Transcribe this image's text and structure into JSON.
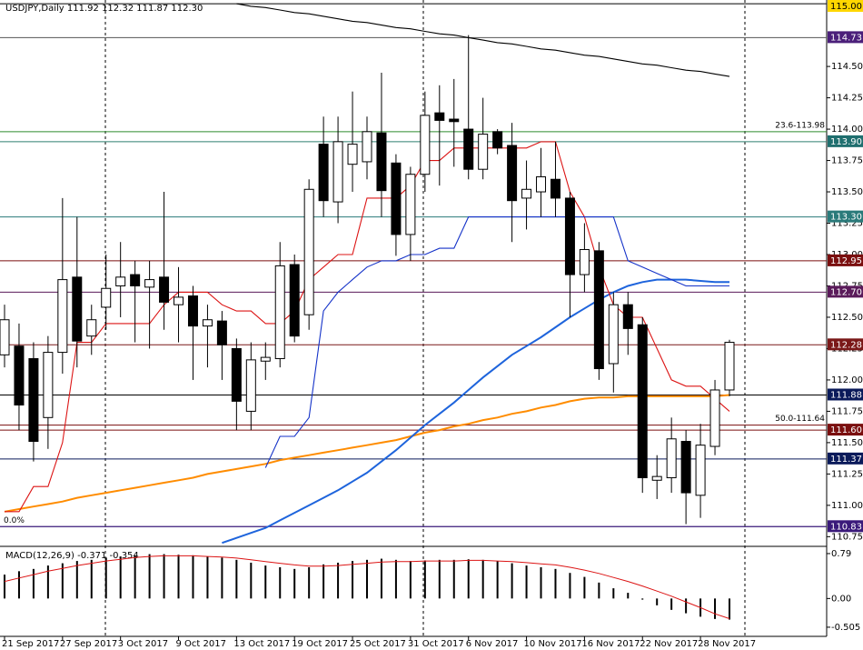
{
  "chart_data": [
    {
      "type": "candlestick",
      "title": "USDJPY,Daily  111.92 112.32 111.87 112.30",
      "categories": [
        "21 Sep 2017",
        null,
        null,
        null,
        "27 Sep 2017",
        null,
        null,
        null,
        "3 Oct 2017",
        null,
        null,
        null,
        "9 Oct 2017",
        null,
        null,
        null,
        "13 Oct 2017",
        null,
        null,
        null,
        "19 Oct 2017",
        null,
        null,
        null,
        "25 Oct 2017",
        null,
        null,
        null,
        "31 Oct 2017",
        null,
        null,
        null,
        "6 Nov 2017",
        null,
        null,
        null,
        "10 Nov 2017",
        null,
        null,
        null,
        "16 Nov 2017",
        null,
        null,
        null,
        "22 Nov 2017",
        null,
        null,
        null,
        "28 Nov 2017",
        null,
        null
      ],
      "open": [
        112.2,
        112.27,
        112.17,
        111.7,
        112.22,
        112.82,
        112.35,
        112.58,
        112.75,
        112.84,
        112.74,
        112.82,
        112.6,
        112.67,
        112.43,
        112.47,
        112.25,
        111.75,
        112.15,
        112.17,
        112.92,
        112.52,
        113.88,
        113.42,
        113.72,
        113.74,
        113.97,
        113.73,
        113.16,
        113.64,
        114.13,
        114.08,
        114.0,
        113.68,
        113.98,
        113.87,
        113.45,
        113.5,
        113.6,
        113.45,
        112.84,
        113.03,
        112.13,
        112.6,
        112.44,
        111.2,
        111.22,
        111.51,
        111.08,
        111.47,
        111.92
      ],
      "high": [
        112.6,
        112.45,
        112.3,
        112.35,
        113.45,
        113.3,
        112.6,
        113.0,
        113.1,
        112.95,
        112.95,
        113.5,
        112.9,
        112.75,
        112.6,
        112.55,
        112.33,
        112.3,
        112.3,
        113.1,
        113.0,
        113.6,
        114.1,
        114.1,
        114.3,
        114.1,
        114.45,
        113.8,
        113.7,
        114.3,
        114.35,
        114.4,
        114.75,
        114.25,
        114.0,
        114.05,
        113.75,
        113.85,
        113.9,
        113.5,
        113.25,
        113.1,
        112.7,
        112.7,
        112.5,
        111.4,
        111.7,
        111.6,
        111.65,
        112.0,
        112.32
      ],
      "low": [
        112.1,
        111.6,
        111.35,
        111.45,
        112.05,
        112.1,
        112.2,
        112.4,
        112.5,
        112.3,
        112.25,
        112.4,
        112.3,
        112.0,
        112.1,
        112.0,
        111.6,
        111.6,
        112.0,
        112.1,
        112.3,
        112.4,
        113.3,
        113.25,
        113.5,
        113.6,
        113.3,
        112.99,
        112.95,
        113.5,
        113.55,
        113.7,
        113.6,
        113.6,
        113.8,
        113.1,
        113.2,
        113.3,
        113.3,
        112.5,
        112.7,
        112.0,
        111.9,
        112.2,
        111.1,
        111.05,
        111.1,
        110.85,
        110.9,
        111.4,
        111.87
      ],
      "close": [
        112.48,
        111.8,
        111.51,
        112.22,
        112.8,
        112.31,
        112.48,
        112.73,
        112.82,
        112.75,
        112.8,
        112.62,
        112.66,
        112.43,
        112.48,
        112.28,
        111.83,
        112.16,
        112.18,
        112.91,
        112.35,
        113.52,
        113.43,
        113.9,
        113.88,
        113.98,
        113.51,
        113.16,
        113.64,
        114.11,
        114.07,
        114.06,
        113.68,
        113.96,
        113.85,
        113.43,
        113.52,
        113.62,
        113.45,
        112.84,
        113.04,
        112.09,
        112.6,
        112.41,
        111.22,
        111.23,
        111.53,
        111.1,
        111.48,
        111.92,
        112.3
      ],
      "series": [
        {
          "color": "#ff8c00",
          "values": [
            110.95,
            110.97,
            110.99,
            111.01,
            111.03,
            111.06,
            111.08,
            111.1,
            111.12,
            111.14,
            111.16,
            111.18,
            111.2,
            111.22,
            111.25,
            111.27,
            111.29,
            111.31,
            111.33,
            111.36,
            111.38,
            111.4,
            111.42,
            111.44,
            111.46,
            111.48,
            111.5,
            111.52,
            111.55,
            111.58,
            111.6,
            111.63,
            111.65,
            111.68,
            111.7,
            111.73,
            111.75,
            111.78,
            111.8,
            111.83,
            111.85,
            111.86,
            111.86,
            111.87,
            111.87,
            111.87,
            111.87,
            111.87,
            111.87,
            111.87,
            111.88
          ]
        },
        {
          "color": "#1e64dc",
          "values": [
            null,
            null,
            null,
            null,
            null,
            null,
            null,
            null,
            null,
            null,
            null,
            null,
            null,
            null,
            null,
            110.7,
            110.74,
            110.78,
            110.82,
            110.88,
            110.94,
            111.0,
            111.06,
            111.12,
            111.19,
            111.26,
            111.35,
            111.44,
            111.54,
            111.64,
            111.73,
            111.82,
            111.92,
            112.02,
            112.11,
            112.2,
            112.27,
            112.34,
            112.42,
            112.5,
            112.57,
            112.64,
            112.7,
            112.75,
            112.78,
            112.8,
            112.8,
            112.8,
            112.79,
            112.78,
            112.78
          ]
        },
        {
          "color": "#dc1414",
          "values": [
            110.95,
            110.95,
            111.15,
            111.15,
            111.5,
            112.3,
            112.3,
            112.45,
            112.45,
            112.45,
            112.45,
            112.6,
            112.7,
            112.7,
            112.7,
            112.6,
            112.55,
            112.55,
            112.45,
            112.45,
            112.55,
            112.8,
            112.9,
            113.0,
            113.0,
            113.45,
            113.45,
            113.45,
            113.55,
            113.75,
            113.75,
            113.85,
            113.85,
            113.85,
            113.85,
            113.85,
            113.85,
            113.9,
            113.9,
            113.5,
            113.3,
            112.9,
            112.6,
            112.5,
            112.5,
            112.25,
            112.0,
            111.95,
            111.95,
            111.85,
            111.75
          ]
        },
        {
          "color": "#1432c8",
          "values": [
            null,
            null,
            null,
            null,
            null,
            null,
            null,
            null,
            null,
            null,
            null,
            null,
            null,
            null,
            null,
            null,
            null,
            null,
            111.3,
            111.55,
            111.55,
            111.7,
            112.55,
            112.7,
            112.8,
            112.9,
            112.95,
            112.95,
            113.0,
            113.0,
            113.05,
            113.05,
            113.3,
            113.3,
            113.3,
            113.3,
            113.3,
            113.3,
            113.3,
            113.3,
            113.3,
            113.3,
            113.3,
            112.95,
            112.9,
            112.85,
            112.8,
            112.75,
            112.75,
            112.75,
            112.75
          ]
        },
        {
          "color": "#000000",
          "values": [
            null,
            null,
            null,
            null,
            null,
            null,
            null,
            null,
            null,
            null,
            null,
            null,
            null,
            null,
            null,
            null,
            115.0,
            114.98,
            114.97,
            114.95,
            114.93,
            114.92,
            114.9,
            114.88,
            114.86,
            114.85,
            114.83,
            114.81,
            114.8,
            114.78,
            114.76,
            114.75,
            114.73,
            114.71,
            114.69,
            114.68,
            114.66,
            114.64,
            114.63,
            114.61,
            114.59,
            114.58,
            114.56,
            114.54,
            114.52,
            114.51,
            114.49,
            114.47,
            114.46,
            114.44,
            114.42
          ]
        }
      ],
      "ylim": [
        110.68,
        115.03
      ],
      "yticks": [
        {
          "value": 114.5,
          "label": "114.50"
        },
        114.25,
        {
          "value": 114.0,
          "label": "114.00"
        },
        113.75,
        {
          "value": 113.5,
          "label": "113.50"
        },
        113.25,
        {
          "value": 113.0,
          "label": "113.00"
        },
        112.75,
        {
          "value": 112.5,
          "label": "112.50"
        },
        112.25,
        {
          "value": 112.0,
          "label": "112.00"
        },
        111.75,
        {
          "value": 111.5,
          "label": "111.50"
        },
        111.25,
        {
          "value": 111.0,
          "label": "111.00"
        },
        110.75
      ],
      "levels": [
        {
          "value": 115.0,
          "label": "115.00",
          "color": "#ffd700",
          "line": "#000000"
        },
        {
          "value": 114.73,
          "label": "114.73",
          "color": "#4b1f7a",
          "line": "#555555"
        },
        {
          "value": 113.9,
          "label": "113.90",
          "color": "#1f6f6f",
          "line": "#2f7f6f"
        },
        {
          "value": 113.3,
          "label": "113.30",
          "color": "#2a7a7a",
          "line": "#2a7a7a"
        },
        {
          "value": 112.95,
          "label": "112.95",
          "color": "#7a0f0f",
          "line": "#7a0f0f"
        },
        {
          "value": 112.7,
          "label": "112.70",
          "color": "#5a1a5a",
          "line": "#5a1a5a"
        },
        {
          "value": 112.28,
          "label": "112.28",
          "color": "#7a1818",
          "line": "#7a1818"
        },
        {
          "value": 111.88,
          "label": "111.88",
          "color": "#0a1a5a",
          "line": "#000000"
        },
        {
          "value": 111.6,
          "label": "111.60",
          "color": "#7a0f0f",
          "line": "#7a0f0f"
        },
        {
          "value": 111.37,
          "label": "111.37",
          "color": "#0a1a5a",
          "line": "#0a1a5a"
        },
        {
          "value": 110.83,
          "label": "110.83",
          "color": "#3a1a7a",
          "line": "#3a1a7a"
        }
      ],
      "fibs": [
        {
          "value": 113.98,
          "label": "23.6-113.98",
          "color": "#2e8b2e"
        },
        {
          "value": 111.64,
          "label": "50.0-111.64",
          "color": "#7a0f0f"
        },
        {
          "value": 110.83,
          "label": "0.0%",
          "color": "#3a1a7a"
        }
      ]
    },
    {
      "type": "macd",
      "title": "MACD(12,26,9) -0.371 -0.354",
      "values": [
        0.42,
        0.48,
        0.52,
        0.58,
        0.62,
        0.66,
        0.68,
        0.72,
        0.74,
        0.76,
        0.78,
        0.78,
        0.77,
        0.76,
        0.74,
        0.72,
        0.68,
        0.63,
        0.58,
        0.55,
        0.52,
        0.55,
        0.6,
        0.63,
        0.66,
        0.68,
        0.7,
        0.68,
        0.66,
        0.67,
        0.68,
        0.68,
        0.69,
        0.68,
        0.66,
        0.62,
        0.58,
        0.55,
        0.52,
        0.45,
        0.38,
        0.28,
        0.18,
        0.1,
        -0.02,
        -0.12,
        -0.2,
        -0.26,
        -0.32,
        -0.36,
        -0.371
      ],
      "signal": {
        "color": "#dc1414",
        "values": [
          0.3,
          0.36,
          0.42,
          0.48,
          0.53,
          0.58,
          0.62,
          0.66,
          0.69,
          0.72,
          0.74,
          0.75,
          0.75,
          0.75,
          0.74,
          0.73,
          0.71,
          0.68,
          0.65,
          0.62,
          0.59,
          0.57,
          0.57,
          0.58,
          0.6,
          0.62,
          0.64,
          0.65,
          0.65,
          0.66,
          0.66,
          0.66,
          0.67,
          0.67,
          0.66,
          0.65,
          0.63,
          0.61,
          0.59,
          0.55,
          0.5,
          0.44,
          0.37,
          0.3,
          0.22,
          0.13,
          0.04,
          -0.06,
          -0.16,
          -0.27,
          -0.354
        ]
      },
      "ylim": [
        -0.65,
        0.885
      ],
      "yticks": [
        0.79,
        {
          "value": 0,
          "label": "0.00"
        },
        -0.505
      ]
    }
  ]
}
